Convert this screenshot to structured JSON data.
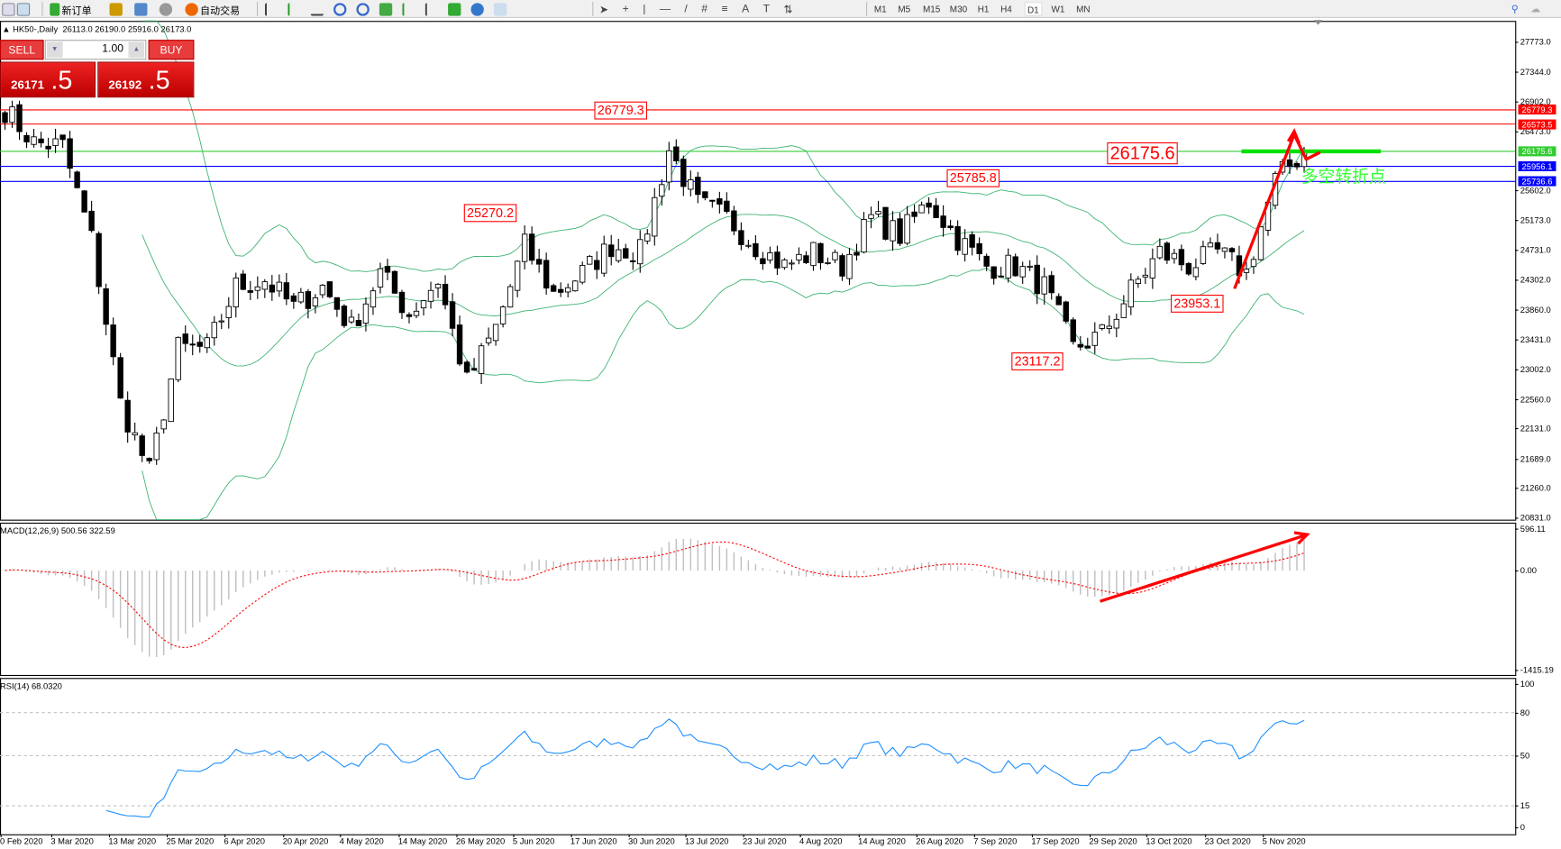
{
  "toolbar": {
    "new_order": "新订单",
    "auto_trade": "自动交易",
    "timeframes": [
      "M1",
      "M5",
      "M15",
      "M30",
      "H1",
      "H4",
      "D1",
      "W1",
      "MN"
    ],
    "active_timeframe": "D1"
  },
  "chart": {
    "symbol": "HK50-,Daily",
    "ohlc": "26113.0 26190.0 25916.0 26173.0"
  },
  "trade_panel": {
    "sell": "SELL",
    "buy": "BUY",
    "lot": "1.00",
    "sell_main": "26171",
    "sell_frac": ".5",
    "buy_main": "26192",
    "buy_frac": ".5"
  },
  "price_axis": [
    "27773.0",
    "27344.0",
    "26902.0",
    "26473.0",
    "25602.0",
    "25173.0",
    "24731.0",
    "24302.0",
    "23860.0",
    "23431.0",
    "23002.0",
    "22560.0",
    "22131.0",
    "21689.0",
    "21260.0",
    "20831.0"
  ],
  "hlines": [
    {
      "price": 26779.3,
      "label": "26779.3",
      "color": "#ff0000"
    },
    {
      "price": 26573.5,
      "label": "26573.5",
      "color": "#ff0000"
    },
    {
      "price": 26175.6,
      "label": "26175.6",
      "color": "#33cc33"
    },
    {
      "price": 25956.1,
      "label": "25956.1",
      "color": "#0000ff"
    },
    {
      "price": 25736.6,
      "label": "25736.6",
      "color": "#0000ff"
    }
  ],
  "annotations": [
    "26779.3",
    "25270.2",
    "25785.8",
    "26175.6",
    "23953.1",
    "23117.2"
  ],
  "note_text": "多空转折点",
  "macd": {
    "label": "MACD(12,26,9) 500.56 322.59",
    "axis": [
      "596.11",
      "0.00",
      "-1415.19"
    ],
    "max": 596.11,
    "min": -1415.19
  },
  "rsi": {
    "label": "RSI(14) 68.0320",
    "axis": [
      "100",
      "80",
      "50",
      "15",
      "0"
    ],
    "levels": [
      80,
      50,
      15
    ]
  },
  "date_axis": [
    "0 Feb 2020",
    "3 Mar 2020",
    "13 Mar 2020",
    "25 Mar 2020",
    "6 Apr 2020",
    "20 Apr 2020",
    "4 May 2020",
    "14 May 2020",
    "26 May 2020",
    "5 Jun 2020",
    "17 Jun 2020",
    "30 Jun 2020",
    "13 Jul 2020",
    "23 Jul 2020",
    "4 Aug 2020",
    "14 Aug 2020",
    "26 Aug 2020",
    "7 Sep 2020",
    "17 Sep 2020",
    "29 Sep 2020",
    "13 Oct 2020",
    "23 Oct 2020",
    "5 Nov 2020"
  ],
  "colors": {
    "bands": "#3cb371",
    "signal": "#ff0000",
    "histogram": "#c0c0c0",
    "rsi": "#1e90ff",
    "arrow": "#ff0000"
  },
  "chart_data": {
    "type": "candlestick",
    "ylim": [
      20831,
      27773
    ],
    "bars_per_sample": 4,
    "approx_closes": [
      26786,
      26300,
      26250,
      24900,
      22500,
      21500,
      23300,
      23300,
      24200,
      24300,
      23900,
      24200,
      23600,
      24400,
      23800,
      24300,
      22800,
      23600,
      24800,
      24100,
      24400,
      24800,
      24700,
      26200,
      25400,
      25200,
      24800,
      24500,
      24700,
      24500,
      25200,
      24950,
      25450,
      24900,
      24500,
      24500,
      24200,
      23300,
      23500,
      24150,
      24700,
      24500,
      24700,
      24400,
      25750,
      26173
    ]
  }
}
